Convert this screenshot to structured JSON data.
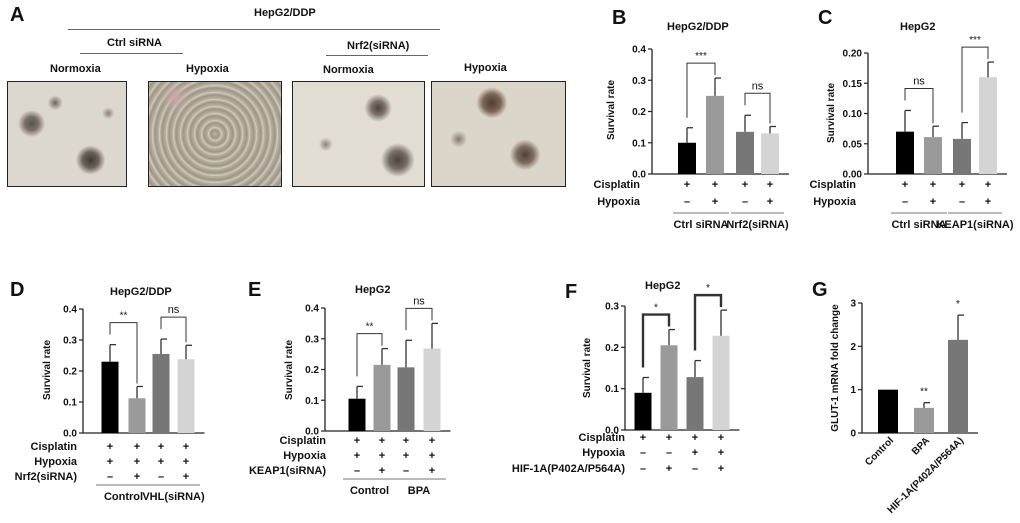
{
  "panel_a": {
    "letter": "A",
    "title": "HepG2/DDP",
    "groups": [
      "Ctrl siRNA",
      "Nrf2(siRNA)"
    ],
    "conditions": [
      "Normoxia",
      "Hypoxia",
      "Normoxia",
      "Hypoxia"
    ]
  },
  "chart_data": [
    {
      "letter": "B",
      "type": "bar",
      "title": "HepG2/DDP",
      "ylabel": "Survival rate",
      "ylim": [
        0,
        0.4
      ],
      "yticks": [
        "0.0",
        "0.1",
        "0.2",
        "0.3",
        "0.4"
      ],
      "values": [
        0.1,
        0.25,
        0.135,
        0.13
      ],
      "errors": [
        0.048,
        0.057,
        0.053,
        0.022
      ],
      "colors": [
        "#000000",
        "#9a9a9a",
        "#777777",
        "#d4d4d4"
      ],
      "rows": [
        {
          "label": "Cisplatin",
          "marks": [
            "+",
            "+",
            "+",
            "+"
          ]
        },
        {
          "label": "Hypoxia",
          "marks": [
            "–",
            "+",
            "–",
            "+"
          ]
        }
      ],
      "groups": [
        {
          "label": "Ctrl siRNA",
          "bars": [
            0,
            1
          ]
        },
        {
          "label": "Nrf2(siRNA)",
          "bars": [
            2,
            3
          ]
        }
      ],
      "significance": [
        {
          "bars": [
            0,
            1
          ],
          "label": "***"
        },
        {
          "bars": [
            2,
            3
          ],
          "label": "ns"
        }
      ]
    },
    {
      "letter": "C",
      "type": "bar",
      "title": "HepG2",
      "ylabel": "Survival rate",
      "ylim": [
        0,
        0.2
      ],
      "yticks": [
        "0.00",
        "0.05",
        "0.10",
        "0.15",
        "0.20"
      ],
      "values": [
        0.07,
        0.061,
        0.058,
        0.16
      ],
      "errors": [
        0.035,
        0.018,
        0.027,
        0.025
      ],
      "colors": [
        "#000000",
        "#9a9a9a",
        "#777777",
        "#d4d4d4"
      ],
      "rows": [
        {
          "label": "Cisplatin",
          "marks": [
            "+",
            "+",
            "+",
            "+"
          ]
        },
        {
          "label": "Hypoxia",
          "marks": [
            "–",
            "+",
            "–",
            "+"
          ]
        }
      ],
      "groups": [
        {
          "label": "Ctrl siRNA",
          "bars": [
            0,
            1
          ]
        },
        {
          "label": "KEAP1(siRNA)",
          "bars": [
            2,
            3
          ]
        }
      ],
      "significance": [
        {
          "bars": [
            0,
            1
          ],
          "label": "ns"
        },
        {
          "bars": [
            2,
            3
          ],
          "label": "***"
        }
      ]
    },
    {
      "letter": "D",
      "type": "bar",
      "title": "HepG2/DDP",
      "ylabel": "Survival rate",
      "ylim": [
        0,
        0.4
      ],
      "yticks": [
        "0.0",
        "0.1",
        "0.2",
        "0.3",
        "0.4"
      ],
      "values": [
        0.23,
        0.112,
        0.255,
        0.238
      ],
      "errors": [
        0.055,
        0.038,
        0.048,
        0.045
      ],
      "colors": [
        "#000000",
        "#9a9a9a",
        "#777777",
        "#d4d4d4"
      ],
      "rows": [
        {
          "label": "Cisplatin",
          "marks": [
            "+",
            "+",
            "+",
            "+"
          ]
        },
        {
          "label": "Hypoxia",
          "marks": [
            "+",
            "+",
            "+",
            "+"
          ]
        },
        {
          "label": "Nrf2(siRNA)",
          "marks": [
            "–",
            "+",
            "–",
            "+"
          ]
        }
      ],
      "groups": [
        {
          "label": "Control",
          "bars": [
            0,
            1
          ]
        },
        {
          "label": "VHL(siRNA)",
          "bars": [
            2,
            3
          ]
        }
      ],
      "significance": [
        {
          "bars": [
            0,
            1
          ],
          "label": "**"
        },
        {
          "bars": [
            2,
            3
          ],
          "label": "ns"
        }
      ]
    },
    {
      "letter": "E",
      "type": "bar",
      "title": "HepG2",
      "ylabel": "Survival rate",
      "ylim": [
        0,
        0.4
      ],
      "yticks": [
        "0.0",
        "0.1",
        "0.2",
        "0.3",
        "0.4"
      ],
      "values": [
        0.105,
        0.215,
        0.207,
        0.268
      ],
      "errors": [
        0.04,
        0.053,
        0.088,
        0.082
      ],
      "colors": [
        "#000000",
        "#9a9a9a",
        "#777777",
        "#d4d4d4"
      ],
      "rows": [
        {
          "label": "Cisplatin",
          "marks": [
            "+",
            "+",
            "+",
            "+"
          ]
        },
        {
          "label": "Hypoxia",
          "marks": [
            "+",
            "+",
            "+",
            "+"
          ]
        },
        {
          "label": "KEAP1(siRNA)",
          "marks": [
            "–",
            "+",
            "–",
            "+"
          ]
        }
      ],
      "groups": [
        {
          "label": "Control",
          "bars": [
            0,
            1
          ]
        },
        {
          "label": "BPA",
          "bars": [
            2,
            3
          ]
        }
      ],
      "significance": [
        {
          "bars": [
            0,
            1
          ],
          "label": "**"
        },
        {
          "bars": [
            2,
            3
          ],
          "label": "ns"
        }
      ]
    },
    {
      "letter": "F",
      "type": "bar",
      "title": "HepG2",
      "ylabel": "Survival rate",
      "ylim": [
        0,
        0.3
      ],
      "yticks": [
        "0.0",
        "0.1",
        "0.2",
        "0.3"
      ],
      "values": [
        0.09,
        0.205,
        0.128,
        0.228
      ],
      "errors": [
        0.037,
        0.038,
        0.04,
        0.062
      ],
      "colors": [
        "#000000",
        "#9a9a9a",
        "#777777",
        "#d4d4d4"
      ],
      "rows": [
        {
          "label": "Cisplatin",
          "marks": [
            "+",
            "+",
            "+",
            "+"
          ]
        },
        {
          "label": "Hypoxia",
          "marks": [
            "–",
            "–",
            "+",
            "+"
          ]
        },
        {
          "label": "HIF-1A(P402A/P564A)",
          "marks": [
            "–",
            "+",
            "–",
            "+"
          ]
        }
      ],
      "groups": [],
      "significance": [
        {
          "bars": [
            0,
            1
          ],
          "label": "*"
        },
        {
          "bars": [
            2,
            3
          ],
          "label": "*"
        }
      ]
    },
    {
      "letter": "G",
      "type": "bar",
      "title": "",
      "ylabel": "GLUT-1 mRNA fold change",
      "ylim": [
        0,
        3
      ],
      "yticks": [
        "0",
        "1",
        "2",
        "3"
      ],
      "categories": [
        "Control",
        "BPA",
        "HIF-1A(P402A/P564A)"
      ],
      "values": [
        1.0,
        0.58,
        2.15
      ],
      "errors": [
        0,
        0.12,
        0.57
      ],
      "colors": [
        "#000000",
        "#9a9a9a",
        "#777777"
      ],
      "rows": [],
      "groups": [],
      "bar_labels": [
        "",
        "**",
        "*"
      ]
    }
  ]
}
